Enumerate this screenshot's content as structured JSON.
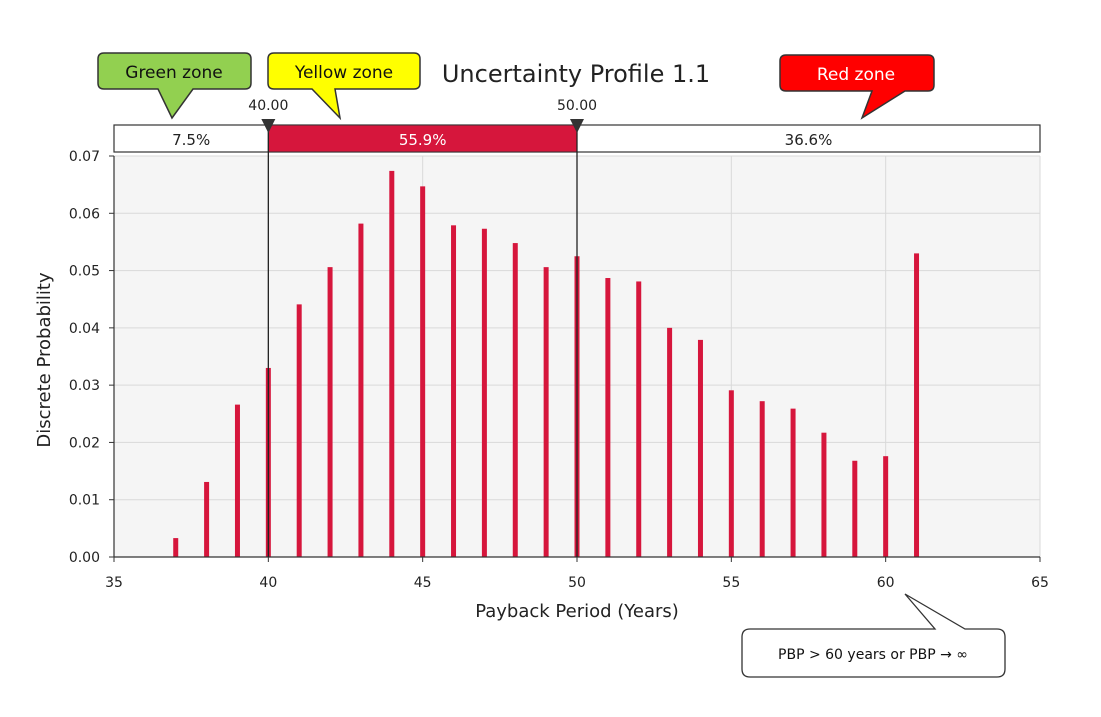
{
  "zones": {
    "green_label": "Green zone",
    "yellow_label": "Yellow zone",
    "red_label": "Red zone",
    "green_color": "#92d050",
    "yellow_color": "#ffff00",
    "red_color": "#ff0000"
  },
  "note": "PBP > 60 years or PBP → ∞",
  "chart_data": {
    "type": "bar",
    "title": "Uncertainty Profile 1.1",
    "xlabel": "Payback Period (Years)",
    "ylabel": "Discrete Probability",
    "xlim": [
      35,
      65
    ],
    "ylim": [
      0,
      0.07
    ],
    "xticks": [
      35,
      40,
      45,
      50,
      55,
      60,
      65
    ],
    "yticks": [
      "0.00",
      "0.01",
      "0.02",
      "0.03",
      "0.04",
      "0.05",
      "0.06",
      "0.07"
    ],
    "grid": true,
    "bar_color": "#d6163c",
    "x": [
      37,
      38,
      39,
      40,
      41,
      42,
      43,
      44,
      45,
      46,
      47,
      48,
      49,
      50,
      51,
      52,
      53,
      54,
      55,
      56,
      57,
      58,
      59,
      60,
      61
    ],
    "values": [
      0.0033,
      0.0131,
      0.0266,
      0.033,
      0.0441,
      0.0506,
      0.0582,
      0.0674,
      0.0647,
      0.0579,
      0.0573,
      0.0548,
      0.0506,
      0.0525,
      0.0487,
      0.0481,
      0.04,
      0.0379,
      0.0291,
      0.0272,
      0.0259,
      0.0217,
      0.0168,
      0.0176,
      0.053
    ],
    "delimiters": [
      {
        "x": 40,
        "label": "40.00"
      },
      {
        "x": 50,
        "label": "50.00"
      }
    ],
    "regions": [
      {
        "label": "7.5%",
        "highlighted": false
      },
      {
        "label": "55.9%",
        "highlighted": true
      },
      {
        "label": "36.6%",
        "highlighted": false
      }
    ]
  }
}
